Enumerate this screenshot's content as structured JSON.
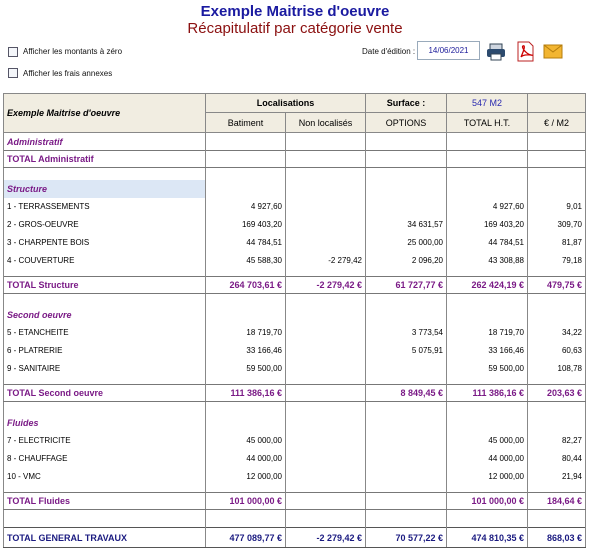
{
  "header": {
    "title": "Exemple Maitrise d'oeuvre",
    "subtitle": "Récapitulatif par catégorie vente"
  },
  "options": {
    "show_zero": "Afficher les montants à zéro",
    "show_fees": "Afficher les frais annexes",
    "date_label": "Date d'édition :",
    "date": "14/06/2021"
  },
  "table": {
    "corner": "Exemple Maitrise d'oeuvre",
    "group": "Localisations",
    "surface_label": "Surface :",
    "surface": "547 M2",
    "columns": [
      "Batiment",
      "Non localisés",
      "OPTIONS",
      "TOTAL H.T.",
      "€ / M2"
    ],
    "sections": [
      {
        "title": "Administratif",
        "rows": [],
        "total": {
          "label": "TOTAL Administratif",
          "cells": [
            null,
            null,
            null,
            null,
            null
          ]
        }
      },
      {
        "title": "Structure",
        "rows": [
          {
            "label": "1 - TERRASSEMENTS",
            "cells": [
              "4 927,60",
              null,
              null,
              "4 927,60",
              "9,01"
            ]
          },
          {
            "label": "2 - GROS-OEUVRE",
            "cells": [
              "169 403,20",
              null,
              "34 631,57",
              "169 403,20",
              "309,70"
            ]
          },
          {
            "label": "3 - CHARPENTE BOIS",
            "cells": [
              "44 784,51",
              null,
              "25 000,00",
              "44 784,51",
              "81,87"
            ]
          },
          {
            "label": "4 - COUVERTURE",
            "cells": [
              "45 588,30",
              "-2 279,42",
              "2 096,20",
              "43 308,88",
              "79,18"
            ]
          }
        ],
        "total": {
          "label": "TOTAL Structure",
          "cells": [
            "264 703,61 €",
            "-2 279,42 €",
            "61 727,77 €",
            "262 424,19 €",
            "479,75 €"
          ]
        }
      },
      {
        "title": "Second oeuvre",
        "rows": [
          {
            "label": "5 - ETANCHEITE",
            "cells": [
              "18 719,70",
              null,
              "3 773,54",
              "18 719,70",
              "34,22"
            ]
          },
          {
            "label": "6 - PLATRERIE",
            "cells": [
              "33 166,46",
              null,
              "5 075,91",
              "33 166,46",
              "60,63"
            ]
          },
          {
            "label": "9 - SANITAIRE",
            "cells": [
              "59 500,00",
              null,
              null,
              "59 500,00",
              "108,78"
            ]
          }
        ],
        "total": {
          "label": "TOTAL Second oeuvre",
          "cells": [
            "111 386,16 €",
            null,
            "8 849,45 €",
            "111 386,16 €",
            "203,63 €"
          ]
        }
      },
      {
        "title": "Fluides",
        "rows": [
          {
            "label": "7 - ELECTRICITE",
            "cells": [
              "45 000,00",
              null,
              null,
              "45 000,00",
              "82,27"
            ]
          },
          {
            "label": "8 - CHAUFFAGE",
            "cells": [
              "44 000,00",
              null,
              null,
              "44 000,00",
              "80,44"
            ]
          },
          {
            "label": "10 - VMC",
            "cells": [
              "12 000,00",
              null,
              null,
              "12 000,00",
              "21,94"
            ]
          }
        ],
        "total": {
          "label": "TOTAL Fluides",
          "cells": [
            "101 000,00 €",
            null,
            null,
            "101 000,00 €",
            "184,64 €"
          ]
        }
      }
    ],
    "grand_total": {
      "label": "TOTAL GENERAL TRAVAUX",
      "cells": [
        "477 089,77 €",
        "-2 279,42 €",
        "70 577,22 €",
        "474 810,35 €",
        "868,03 €"
      ]
    }
  }
}
